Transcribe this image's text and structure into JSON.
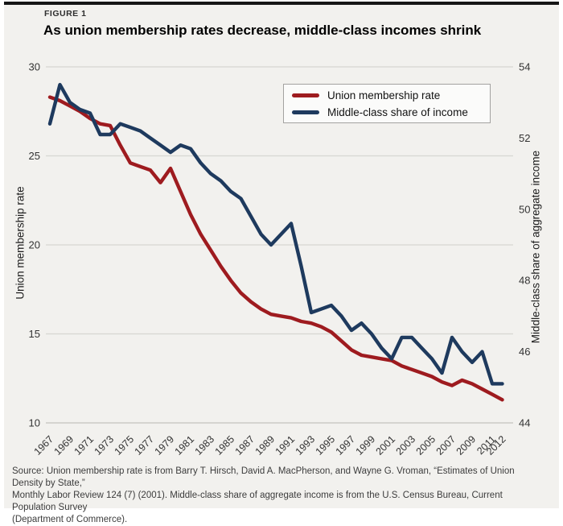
{
  "figure": {
    "kicker": "FIGURE 1",
    "title": "As union membership rates decrease, middle-class incomes shrink",
    "source_lines": [
      "Source: Union membership rate is from Barry T. Hirsch, David A. MacPherson, and Wayne G. Vroman, “Estimates of Union Density by State,”",
      "Monthly Labor Review 124 (7) (2001). Middle-class share of aggregate income is from the U.S. Census Bureau, Current Population Survey",
      "(Department of Commerce)."
    ]
  },
  "legend": {
    "items": [
      {
        "label": "Union membership rate",
        "color": "#9e1b1f"
      },
      {
        "label": "Middle-class share of income",
        "color": "#1e3a5e"
      }
    ]
  },
  "colors": {
    "background": "#f2f1ee",
    "topbar": "#161616",
    "gridline": "#d7d6d2",
    "bottom_axis": "#c4c3bf",
    "tick_text": "#333333",
    "union_line": "#9e1b1f",
    "income_line": "#1e3a5e"
  },
  "chart_data": {
    "type": "line",
    "title": "As union membership rates decrease, middle-class incomes shrink",
    "x_label": "",
    "x_range": [
      1967,
      2012
    ],
    "x": [
      1967,
      1968,
      1969,
      1970,
      1971,
      1972,
      1973,
      1974,
      1975,
      1976,
      1977,
      1978,
      1979,
      1980,
      1981,
      1982,
      1983,
      1984,
      1985,
      1986,
      1987,
      1988,
      1989,
      1990,
      1991,
      1992,
      1993,
      1994,
      1995,
      1996,
      1997,
      1998,
      1999,
      2000,
      2001,
      2002,
      2003,
      2004,
      2005,
      2006,
      2007,
      2008,
      2009,
      2010,
      2011,
      2012
    ],
    "x_tick_labels": [
      "1967",
      "1969",
      "1971",
      "1973",
      "1975",
      "1977",
      "1979",
      "1981",
      "1983",
      "1985",
      "1987",
      "1989",
      "1991",
      "1993",
      "1995",
      "1997",
      "1999",
      "2001",
      "2003",
      "2005",
      "2007",
      "2009",
      "2011",
      "2012"
    ],
    "left_axis": {
      "label": "Union membership rate",
      "ticks": [
        30,
        25,
        20,
        15,
        10
      ],
      "range": [
        10,
        30
      ]
    },
    "right_axis": {
      "label": "Middle-class share of aggregate income",
      "ticks": [
        54,
        52,
        50,
        48,
        46,
        44
      ],
      "range": [
        44,
        54
      ]
    },
    "grid": true,
    "legend_position": "upper right",
    "series": [
      {
        "name": "Union membership rate",
        "axis": "left",
        "color": "#9e1b1f",
        "values": [
          28.3,
          28.1,
          27.8,
          27.5,
          27.1,
          26.8,
          26.7,
          25.6,
          24.6,
          24.4,
          24.2,
          23.5,
          24.3,
          23.0,
          21.7,
          20.6,
          19.7,
          18.8,
          18.0,
          17.3,
          16.8,
          16.4,
          16.1,
          16.0,
          15.9,
          15.7,
          15.6,
          15.4,
          15.1,
          14.6,
          14.1,
          13.8,
          13.7,
          13.6,
          13.5,
          13.2,
          13.0,
          12.8,
          12.6,
          12.3,
          12.1,
          12.4,
          12.2,
          11.9,
          11.6,
          11.3
        ]
      },
      {
        "name": "Middle-class share of income",
        "axis": "right",
        "color": "#1e3a5e",
        "values": [
          52.4,
          53.5,
          53.0,
          52.8,
          52.7,
          52.1,
          52.1,
          52.4,
          52.3,
          52.2,
          52.0,
          51.8,
          51.6,
          51.8,
          51.7,
          51.3,
          51.0,
          50.8,
          50.5,
          50.3,
          49.8,
          49.3,
          49.0,
          49.3,
          49.6,
          48.4,
          47.1,
          47.2,
          47.3,
          47.0,
          46.6,
          46.8,
          46.5,
          46.1,
          45.8,
          46.4,
          46.4,
          46.1,
          45.8,
          45.4,
          46.4,
          46.0,
          45.7,
          46.0,
          45.1,
          45.1
        ]
      }
    ]
  }
}
